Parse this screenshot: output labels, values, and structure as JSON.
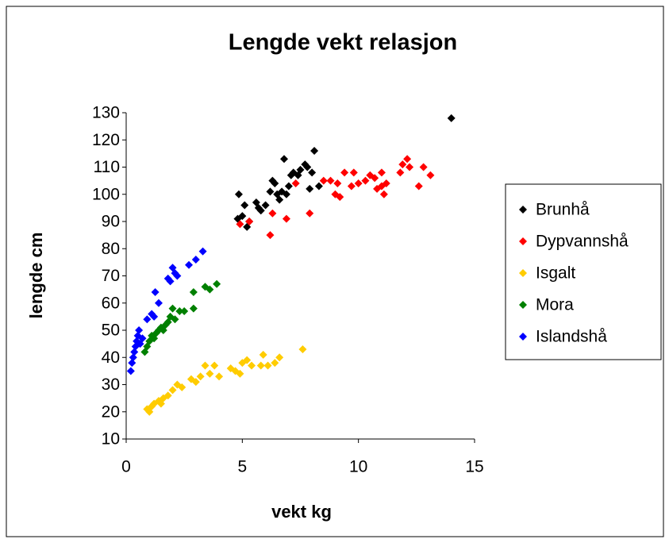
{
  "chart_data": {
    "type": "scatter",
    "title": "Lengde vekt relasjon",
    "x_label": "vekt kg",
    "y_label": "lengde cm",
    "xlim": [
      0,
      15
    ],
    "xticks": [
      0,
      5,
      10,
      15
    ],
    "ylim": [
      10,
      130
    ],
    "yticks": [
      10,
      20,
      30,
      40,
      50,
      60,
      70,
      80,
      90,
      100,
      110,
      120,
      130
    ],
    "grid": false,
    "legend": "right",
    "series": [
      {
        "name": "Brunhå",
        "color": "#000000",
        "x": [
          4.8,
          4.85,
          5.0,
          5.1,
          5.2,
          5.3,
          5.6,
          5.7,
          5.8,
          6.0,
          6.2,
          6.3,
          6.4,
          6.5,
          6.6,
          6.7,
          6.8,
          6.9,
          7.0,
          7.1,
          7.2,
          7.4,
          7.5,
          7.7,
          7.8,
          7.9,
          8.0,
          8.1,
          8.3,
          14.0
        ],
        "values": [
          91,
          100,
          92,
          96,
          88,
          90,
          97,
          95,
          94,
          96,
          101,
          105,
          104,
          100,
          98,
          101,
          113,
          100,
          103,
          107,
          108,
          107,
          109,
          111,
          110,
          102,
          108,
          116,
          103,
          128
        ]
      },
      {
        "name": "Dypvannshå",
        "color": "#ff0000",
        "x": [
          4.9,
          5.3,
          6.2,
          6.3,
          6.9,
          7.3,
          7.9,
          8.5,
          8.8,
          9.0,
          9.1,
          9.2,
          9.4,
          9.7,
          9.8,
          10.0,
          10.3,
          10.5,
          10.7,
          10.8,
          11.0,
          11.0,
          11.1,
          11.2,
          11.8,
          11.9,
          12.1,
          12.2,
          12.6,
          12.8,
          13.1
        ],
        "values": [
          89,
          90,
          85,
          93,
          91,
          104,
          93,
          105,
          105,
          100,
          104,
          99,
          108,
          103,
          108,
          104,
          105,
          107,
          106,
          102,
          108,
          103,
          100,
          104,
          108,
          111,
          113,
          110,
          103,
          110,
          107
        ]
      },
      {
        "name": "Isgalt",
        "color": "#ffcc00",
        "x": [
          0.9,
          1.0,
          1.1,
          1.2,
          1.4,
          1.5,
          1.6,
          1.8,
          2.0,
          2.2,
          2.4,
          2.8,
          3.0,
          3.2,
          3.4,
          3.6,
          3.8,
          4.0,
          4.5,
          4.7,
          4.9,
          5.0,
          5.2,
          5.4,
          5.8,
          5.9,
          6.1,
          6.4,
          6.6,
          7.6
        ],
        "values": [
          21,
          20,
          22,
          23,
          24,
          23,
          25,
          26,
          28,
          30,
          29,
          32,
          31,
          33,
          37,
          34,
          37,
          33,
          36,
          35,
          34,
          38,
          39,
          37,
          37,
          41,
          37,
          38,
          40,
          43
        ]
      },
      {
        "name": "Mora",
        "color": "#008000",
        "x": [
          0.8,
          0.9,
          1.0,
          1.1,
          1.2,
          1.3,
          1.4,
          1.5,
          1.6,
          1.7,
          1.8,
          1.9,
          2.0,
          2.1,
          2.3,
          2.5,
          2.9,
          2.9,
          3.4,
          3.6,
          3.9
        ],
        "values": [
          42,
          44,
          46,
          48,
          47,
          49,
          50,
          51,
          50,
          52,
          53,
          55,
          58,
          54,
          57,
          57,
          64,
          58,
          66,
          65,
          67
        ]
      },
      {
        "name": "Islandshå",
        "color": "#0000ff",
        "x": [
          0.2,
          0.25,
          0.3,
          0.35,
          0.4,
          0.45,
          0.5,
          0.55,
          0.6,
          0.7,
          0.9,
          1.1,
          1.2,
          1.25,
          1.4,
          1.8,
          1.9,
          2.0,
          2.1,
          2.2,
          2.7,
          3.0,
          3.3
        ],
        "values": [
          35,
          38,
          40,
          42,
          44,
          46,
          48,
          50,
          45,
          47,
          54,
          56,
          55,
          64,
          60,
          69,
          68,
          73,
          71,
          70,
          74,
          76,
          79
        ]
      }
    ]
  }
}
